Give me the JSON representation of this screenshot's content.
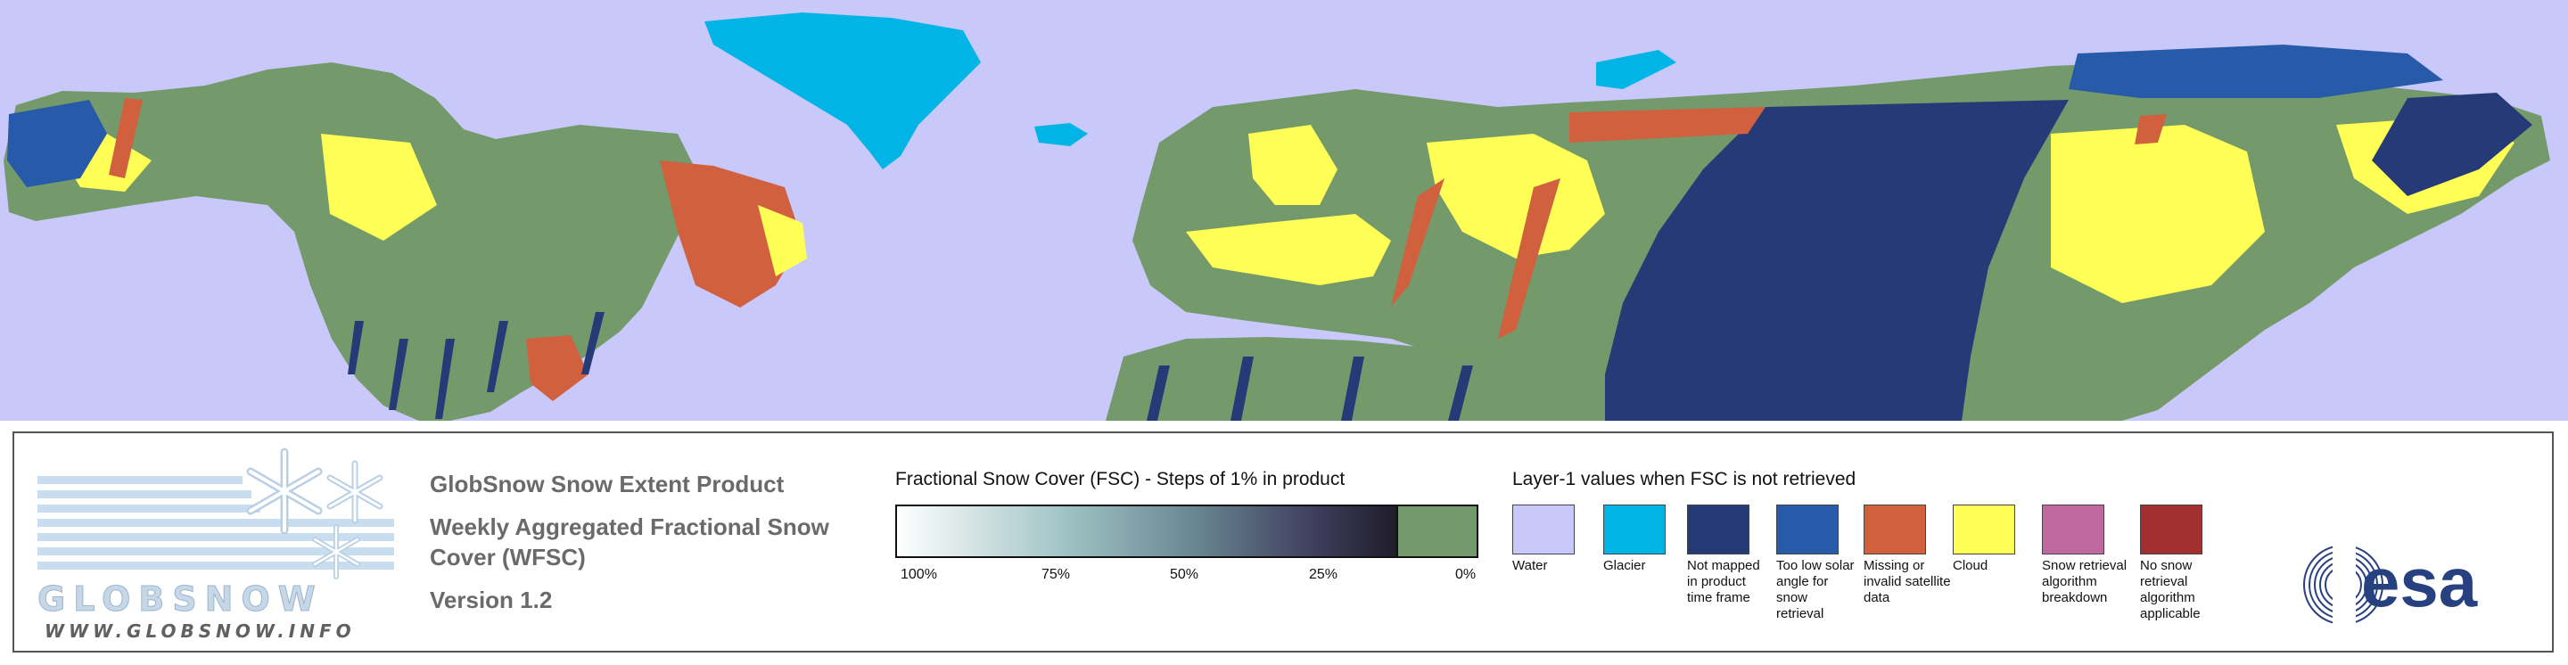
{
  "map": {
    "colors": {
      "water": "#c8c8fa",
      "snow_free": "#749a6b",
      "snow_cover": "#ffff55",
      "glacier": "#00b4e6",
      "not_mapped": "#263a78",
      "low_solar_angle": "#275aa8",
      "missing_data": "#d0603e",
      "snow_retrieval_breakdown": "#c068a0",
      "no_snow_retrieval": "#a33030"
    }
  },
  "logo": {
    "wordmark": "GLOBSNOW",
    "url": "WWW.GLOBSNOW.INFO",
    "stripe_color": "#c9ddf0",
    "flake_color": "#d4e4f3"
  },
  "product": {
    "name": "GlobSnow Snow Extent Product",
    "type": "Weekly Aggregated Fractional Snow Cover (WFSC)",
    "version": "Version 1.2"
  },
  "fsc_scale": {
    "title": "Fractional Snow Cover (FSC) - Steps of 1% in product",
    "ticks": [
      "100%",
      "75%",
      "50%",
      "25%",
      "0%"
    ],
    "no_snow_color": "#749a6b"
  },
  "layer1": {
    "title": "Layer-1 values when FSC is not retrieved",
    "items": [
      {
        "label": "Water",
        "color": "#c8c8fa"
      },
      {
        "label": "Glacier",
        "color": "#00b4e6"
      },
      {
        "label": "Not mapped in product time frame",
        "color": "#263a78"
      },
      {
        "label": "Too low solar angle for snow retrieval",
        "color": "#275aa8"
      },
      {
        "label": "Missing or invalid satellite data",
        "color": "#d0603e"
      },
      {
        "label": "Cloud",
        "color": "#ffff55"
      },
      {
        "label": "Snow retrieval algorithm breakdown",
        "color": "#c068a0"
      },
      {
        "label": "No snow retrieval algorithm applicable",
        "color": "#a33030"
      }
    ]
  },
  "esa_logo": {
    "wordmark": "esa",
    "color": "#27407f"
  }
}
